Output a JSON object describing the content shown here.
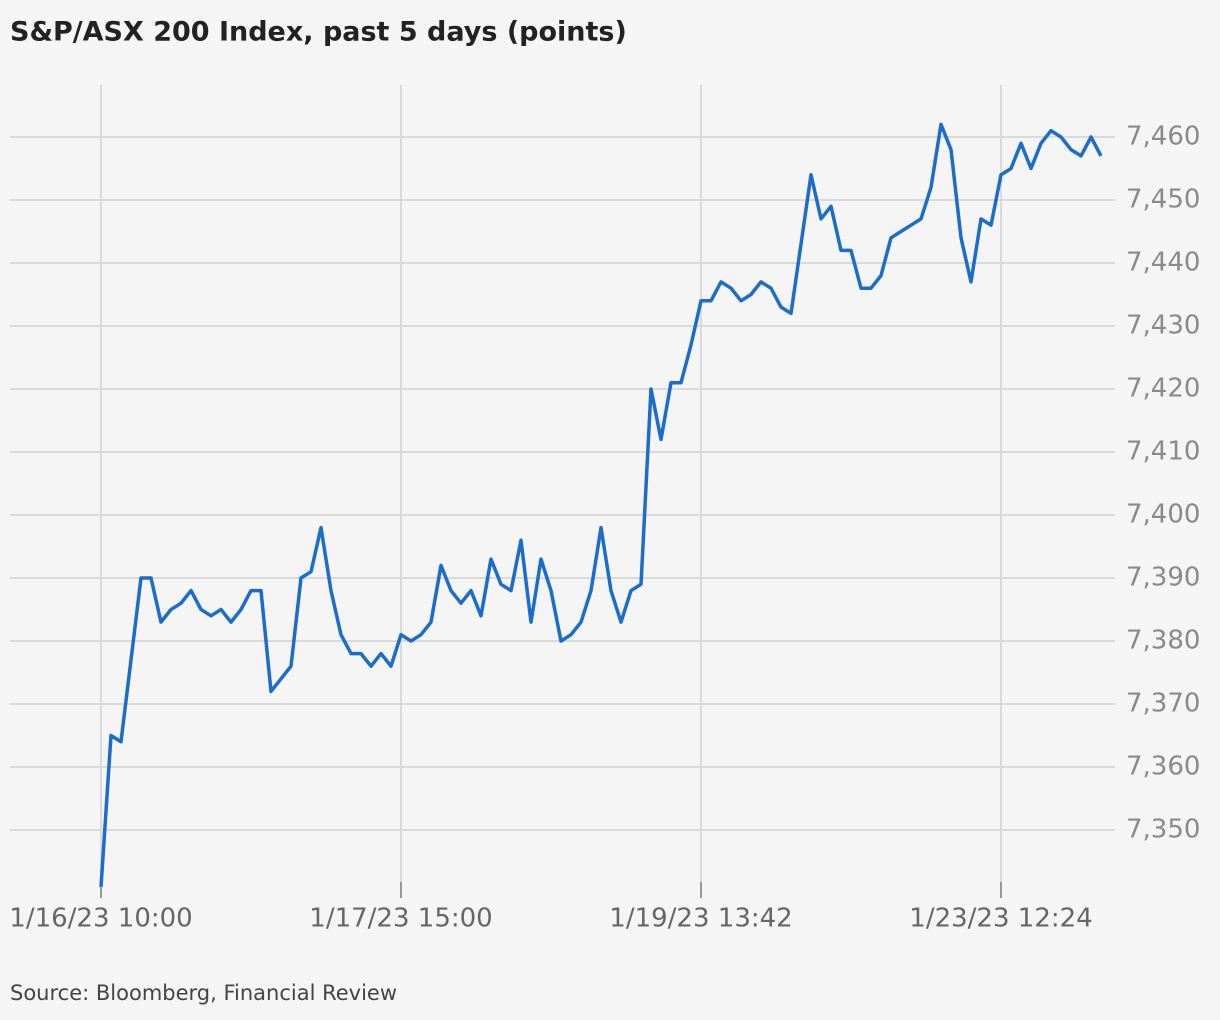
{
  "chart_data": {
    "type": "line",
    "title": "S&P/ASX 200 Index, past 5 days (points)",
    "source": "Source: Bloomberg, Financial Review",
    "categories": [
      "1/16/23 10:00",
      null,
      null,
      null,
      null,
      null,
      null,
      null,
      null,
      null,
      null,
      null,
      null,
      null,
      null,
      null,
      null,
      null,
      null,
      null,
      null,
      null,
      null,
      null,
      null,
      null,
      null,
      null,
      null,
      null,
      "1/17/23 15:00",
      null,
      null,
      null,
      null,
      null,
      null,
      null,
      null,
      null,
      null,
      null,
      null,
      null,
      null,
      null,
      null,
      null,
      null,
      null,
      null,
      null,
      null,
      null,
      null,
      null,
      null,
      null,
      null,
      null,
      "1/19/23 13:42",
      null,
      null,
      null,
      null,
      null,
      null,
      null,
      null,
      null,
      null,
      null,
      null,
      null,
      null,
      null,
      null,
      null,
      null,
      null,
      null,
      null,
      null,
      null,
      null,
      null,
      null,
      null,
      null,
      null,
      "1/23/23 12:24",
      null,
      null,
      null,
      null,
      null,
      null,
      null,
      null,
      null,
      null
    ],
    "series": [
      {
        "name": "S&P/ASX 200",
        "color": "#1a6dcc",
        "values": [
          7341,
          7365,
          7364,
          7377,
          7390,
          7390,
          7383,
          7385,
          7386,
          7388,
          7385,
          7384,
          7385,
          7383,
          7385,
          7388,
          7388,
          7372,
          7374,
          7376,
          7390,
          7391,
          7398,
          7388,
          7381,
          7378,
          7378,
          7376,
          7378,
          7376,
          7381,
          7380,
          7381,
          7383,
          7392,
          7388,
          7386,
          7388,
          7384,
          7393,
          7389,
          7388,
          7396,
          7383,
          7393,
          7388,
          7380,
          7381,
          7383,
          7388,
          7398,
          7388,
          7383,
          7388,
          7389,
          7420,
          7412,
          7421,
          7421,
          7427,
          7434,
          7434,
          7437,
          7436,
          7434,
          7435,
          7437,
          7436,
          7433,
          7432,
          7443,
          7454,
          7447,
          7449,
          7442,
          7442,
          7436,
          7436,
          7438,
          7444,
          7445,
          7446,
          7447,
          7452,
          7462,
          7458,
          7444,
          7437,
          7447,
          7446,
          7454,
          7455,
          7459,
          7455,
          7459,
          7461,
          7460,
          7458,
          7457,
          7460,
          7457
        ]
      }
    ],
    "ylim": [
      7340,
      7470
    ],
    "yticks": [
      {
        "value": 7350,
        "label": "7,350"
      },
      {
        "value": 7360,
        "label": "7,360"
      },
      {
        "value": 7370,
        "label": "7,370"
      },
      {
        "value": 7380,
        "label": "7,380"
      },
      {
        "value": 7390,
        "label": "7,390"
      },
      {
        "value": 7400,
        "label": "7,400"
      },
      {
        "value": 7410,
        "label": "7,410"
      },
      {
        "value": 7420,
        "label": "7,420"
      },
      {
        "value": 7430,
        "label": "7,430"
      },
      {
        "value": 7440,
        "label": "7,440"
      },
      {
        "value": 7450,
        "label": "7,450"
      },
      {
        "value": 7460,
        "label": "7,460"
      }
    ],
    "grid": true
  }
}
